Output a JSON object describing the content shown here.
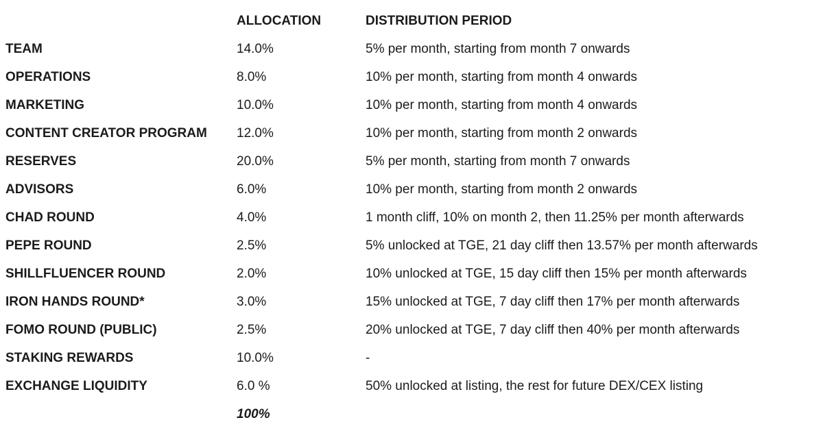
{
  "page": {
    "background_color": "#ffffff",
    "text_color": "#1b1b1b"
  },
  "table": {
    "columns": {
      "category": "",
      "allocation": "ALLOCATION",
      "distribution": "DISTRIBUTION PERIOD"
    },
    "rows": [
      {
        "category": "TEAM",
        "allocation": "14.0%",
        "distribution": "5% per month, starting from month 7 onwards"
      },
      {
        "category": "OPERATIONS",
        "allocation": "8.0%",
        "distribution": "10% per month, starting from month 4 onwards"
      },
      {
        "category": "MARKETING",
        "allocation": "10.0%",
        "distribution": "10% per month, starting from month 4 onwards"
      },
      {
        "category": "CONTENT CREATOR PROGRAM",
        "allocation": "12.0%",
        "distribution": "10% per month, starting from month 2 onwards"
      },
      {
        "category": "RESERVES",
        "allocation": "20.0%",
        "distribution": "5% per month, starting from month 7 onwards"
      },
      {
        "category": "ADVISORS",
        "allocation": "6.0%",
        "distribution": "10% per month, starting from month 2 onwards"
      },
      {
        "category": "CHAD ROUND",
        "allocation": "4.0%",
        "distribution": "1 month cliff, 10% on month 2, then 11.25% per month afterwards"
      },
      {
        "category": "PEPE ROUND",
        "allocation": "2.5%",
        "distribution": "5% unlocked at TGE, 21 day cliff then 13.57% per month afterwards"
      },
      {
        "category": "SHILLFLUENCER ROUND",
        "allocation": "2.0%",
        "distribution": "10% unlocked at TGE, 15 day cliff then 15% per month afterwards"
      },
      {
        "category": "IRON HANDS ROUND*",
        "allocation": "3.0%",
        "distribution": "15% unlocked at TGE, 7 day cliff then 17% per month afterwards"
      },
      {
        "category": "FOMO ROUND (PUBLIC)",
        "allocation": "2.5%",
        "distribution": "20% unlocked at TGE, 7 day cliff then 40% per month afterwards"
      },
      {
        "category": "STAKING REWARDS",
        "allocation": "10.0%",
        "distribution": "-"
      },
      {
        "category": "EXCHANGE LIQUIDITY",
        "allocation": "6.0 %",
        "distribution": "50% unlocked at listing, the rest for future DEX/CEX listing"
      }
    ],
    "total": {
      "allocation": "100%"
    }
  }
}
